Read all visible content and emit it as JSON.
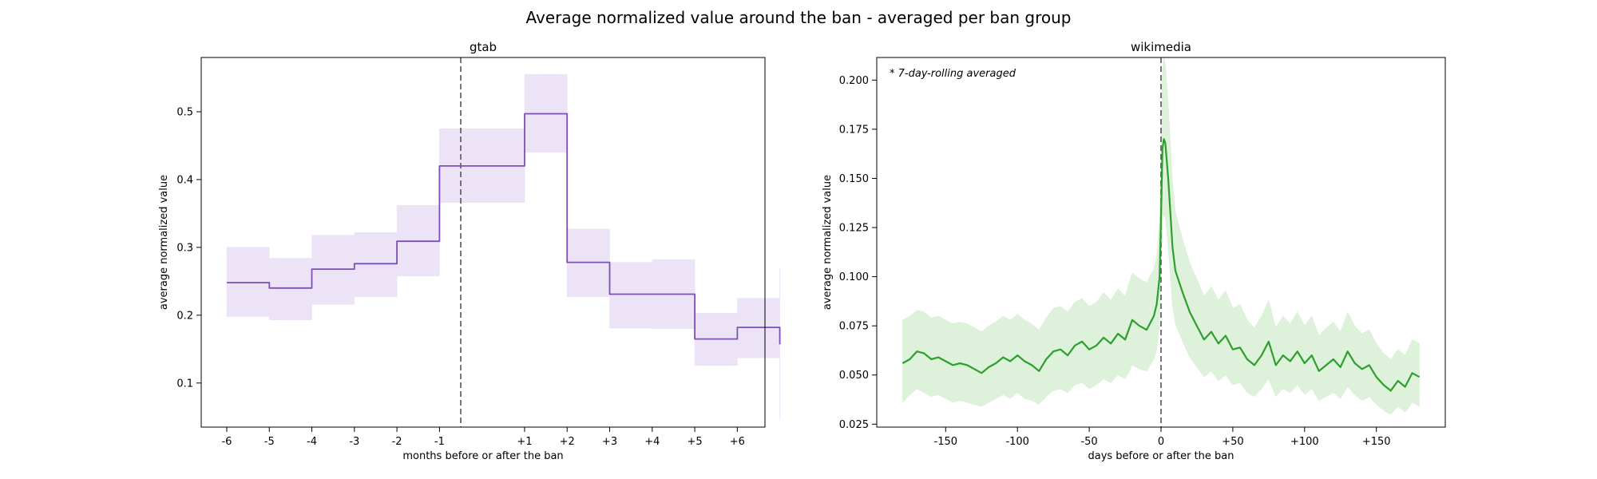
{
  "figure": {
    "suptitle": "Average normalized value around the ban - averaged per ban group"
  },
  "colors": {
    "gtab_line": "#7b4fb5",
    "gtab_band": "#e9dff5",
    "wiki_line": "#2ca02c",
    "wiki_band": "#d8efd5",
    "ban_marker": "#555555"
  },
  "chart_data": [
    {
      "type": "line",
      "title": "gtab",
      "xlabel": "months before or after the ban",
      "ylabel": "average normalized value",
      "drawstyle": "steps-post",
      "x_tick_values": [
        -6,
        -5,
        -4,
        -3,
        -2,
        -1,
        1,
        2,
        3,
        4,
        5,
        6
      ],
      "x_tick_labels": [
        "-6",
        "-5",
        "-4",
        "-3",
        "-2",
        "-1",
        "+1",
        "+2",
        "+3",
        "+4",
        "+5",
        "+6"
      ],
      "xlim": [
        -6.6,
        6.65
      ],
      "ylim": [
        0.035,
        0.58
      ],
      "y_ticks": [
        0.1,
        0.2,
        0.3,
        0.4,
        0.5
      ],
      "y_tick_labels": [
        "0.1",
        "0.2",
        "0.3",
        "0.4",
        "0.5"
      ],
      "ban_marker_x": -0.5,
      "series": [
        {
          "x": [
            -6,
            -5,
            -4,
            -3,
            -2,
            -1,
            1,
            2,
            3,
            4,
            5,
            6,
            7
          ],
          "values": [
            0.248,
            0.24,
            0.268,
            0.276,
            0.309,
            0.42,
            0.497,
            0.278,
            0.231,
            0.231,
            0.165,
            0.182,
            0.157
          ],
          "lower": [
            0.198,
            0.193,
            0.216,
            0.227,
            0.258,
            0.366,
            0.44,
            0.227,
            0.181,
            0.18,
            0.126,
            0.137,
            0.045
          ],
          "upper": [
            0.3,
            0.284,
            0.318,
            0.322,
            0.362,
            0.475,
            0.555,
            0.327,
            0.278,
            0.282,
            0.203,
            0.225,
            0.27
          ]
        }
      ]
    },
    {
      "type": "line",
      "title": "wikimedia",
      "xlabel": "days before or after the ban",
      "ylabel": "average normalized value",
      "annotation": "* 7-day-rolling averaged",
      "x_ticks": [
        -150,
        -100,
        -50,
        0,
        50,
        100,
        150
      ],
      "x_tick_labels": [
        "-150",
        "-100",
        "-50",
        "0",
        "+50",
        "+100",
        "+150"
      ],
      "xlim": [
        -198,
        198
      ],
      "ylim": [
        0.0235,
        0.2115
      ],
      "y_ticks": [
        0.025,
        0.05,
        0.075,
        0.1,
        0.125,
        0.15,
        0.175,
        0.2
      ],
      "y_tick_labels": [
        "0.025",
        "0.050",
        "0.075",
        "0.100",
        "0.125",
        "0.150",
        "0.175",
        "0.200"
      ],
      "ban_marker_x": 0,
      "series": [
        {
          "x": [
            -180,
            -175,
            -170,
            -165,
            -160,
            -155,
            -150,
            -145,
            -140,
            -135,
            -130,
            -125,
            -120,
            -115,
            -110,
            -105,
            -100,
            -95,
            -90,
            -85,
            -80,
            -75,
            -70,
            -65,
            -60,
            -55,
            -50,
            -45,
            -40,
            -35,
            -30,
            -25,
            -20,
            -15,
            -10,
            -5,
            -3,
            -1,
            0,
            1,
            2,
            3,
            5,
            8,
            10,
            15,
            20,
            25,
            30,
            35,
            40,
            45,
            50,
            55,
            60,
            65,
            70,
            75,
            80,
            85,
            90,
            95,
            100,
            105,
            110,
            115,
            120,
            125,
            130,
            135,
            140,
            145,
            150,
            155,
            160,
            165,
            170,
            175,
            180
          ],
          "values": [
            0.056,
            0.058,
            0.062,
            0.061,
            0.058,
            0.059,
            0.057,
            0.055,
            0.056,
            0.055,
            0.053,
            0.051,
            0.054,
            0.056,
            0.059,
            0.057,
            0.06,
            0.057,
            0.055,
            0.052,
            0.058,
            0.062,
            0.063,
            0.06,
            0.065,
            0.067,
            0.063,
            0.065,
            0.069,
            0.066,
            0.071,
            0.068,
            0.078,
            0.075,
            0.073,
            0.08,
            0.086,
            0.1,
            0.13,
            0.165,
            0.17,
            0.168,
            0.15,
            0.115,
            0.103,
            0.092,
            0.082,
            0.075,
            0.068,
            0.072,
            0.066,
            0.07,
            0.063,
            0.064,
            0.058,
            0.055,
            0.06,
            0.067,
            0.055,
            0.06,
            0.057,
            0.062,
            0.056,
            0.06,
            0.052,
            0.055,
            0.058,
            0.054,
            0.062,
            0.056,
            0.053,
            0.055,
            0.049,
            0.045,
            0.042,
            0.047,
            0.044,
            0.051,
            0.049
          ],
          "lower": [
            0.036,
            0.04,
            0.043,
            0.041,
            0.039,
            0.04,
            0.038,
            0.036,
            0.037,
            0.036,
            0.035,
            0.034,
            0.036,
            0.038,
            0.04,
            0.038,
            0.041,
            0.038,
            0.037,
            0.035,
            0.039,
            0.042,
            0.043,
            0.041,
            0.045,
            0.046,
            0.043,
            0.045,
            0.048,
            0.046,
            0.05,
            0.048,
            0.055,
            0.053,
            0.052,
            0.058,
            0.063,
            0.075,
            0.1,
            0.128,
            0.132,
            0.13,
            0.115,
            0.085,
            0.076,
            0.067,
            0.059,
            0.054,
            0.049,
            0.052,
            0.047,
            0.05,
            0.045,
            0.046,
            0.041,
            0.039,
            0.043,
            0.048,
            0.039,
            0.043,
            0.041,
            0.045,
            0.04,
            0.043,
            0.037,
            0.039,
            0.041,
            0.038,
            0.044,
            0.04,
            0.037,
            0.039,
            0.035,
            0.032,
            0.03,
            0.034,
            0.031,
            0.036,
            0.034
          ],
          "upper": [
            0.078,
            0.08,
            0.083,
            0.082,
            0.079,
            0.08,
            0.078,
            0.076,
            0.077,
            0.076,
            0.074,
            0.072,
            0.075,
            0.077,
            0.08,
            0.078,
            0.081,
            0.078,
            0.076,
            0.073,
            0.079,
            0.084,
            0.085,
            0.082,
            0.087,
            0.089,
            0.085,
            0.087,
            0.092,
            0.088,
            0.094,
            0.09,
            0.102,
            0.099,
            0.097,
            0.104,
            0.11,
            0.128,
            0.165,
            0.205,
            0.212,
            0.208,
            0.188,
            0.148,
            0.133,
            0.119,
            0.107,
            0.099,
            0.09,
            0.095,
            0.088,
            0.093,
            0.084,
            0.086,
            0.078,
            0.074,
            0.08,
            0.088,
            0.074,
            0.08,
            0.076,
            0.082,
            0.075,
            0.08,
            0.07,
            0.074,
            0.077,
            0.072,
            0.082,
            0.075,
            0.071,
            0.073,
            0.066,
            0.061,
            0.058,
            0.063,
            0.06,
            0.068,
            0.066
          ]
        }
      ]
    }
  ]
}
